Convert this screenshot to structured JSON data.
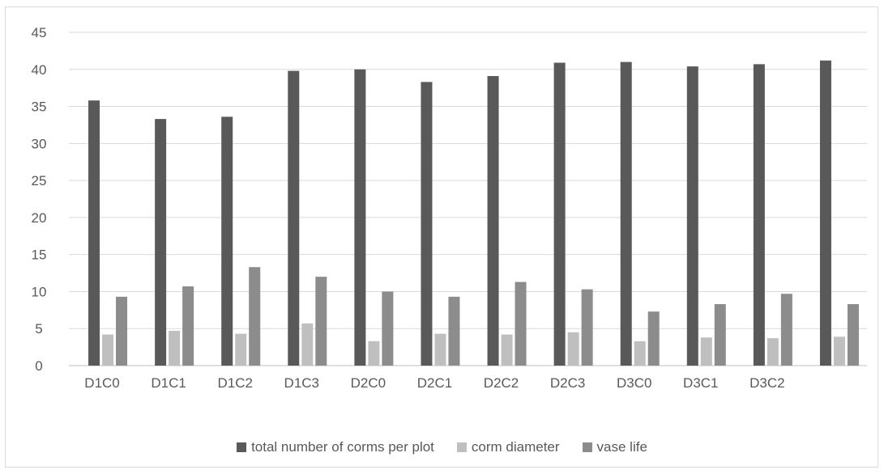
{
  "chart_data": {
    "type": "bar",
    "title": "",
    "xlabel": "",
    "ylabel": "",
    "ylim": [
      0,
      45
    ],
    "yticks": [
      0,
      5,
      10,
      15,
      20,
      25,
      30,
      35,
      40,
      45
    ],
    "grid": true,
    "legend_position": "bottom",
    "categories": [
      "D1C0",
      "D1C1",
      "D1C2",
      "D1C3",
      "D2C0",
      "D2C1",
      "D2C2",
      "D2C3",
      "D3C0",
      "D3C1",
      "D3C2",
      ""
    ],
    "series": [
      {
        "name": "total number of corms per plot",
        "color": "#595959",
        "values": [
          35.8,
          33.3,
          33.6,
          39.8,
          40.0,
          38.3,
          39.1,
          40.9,
          41.0,
          40.4,
          40.7,
          41.2
        ]
      },
      {
        "name": "corm diameter",
        "color": "#bfbfbf",
        "values": [
          4.2,
          4.7,
          4.3,
          5.7,
          3.3,
          4.3,
          4.2,
          4.5,
          3.3,
          3.8,
          3.7,
          3.9
        ]
      },
      {
        "name": "vase life",
        "color": "#8c8c8c",
        "values": [
          9.3,
          10.7,
          13.3,
          12.0,
          10.0,
          9.3,
          11.3,
          10.3,
          7.3,
          8.3,
          9.7,
          8.3
        ]
      }
    ]
  }
}
